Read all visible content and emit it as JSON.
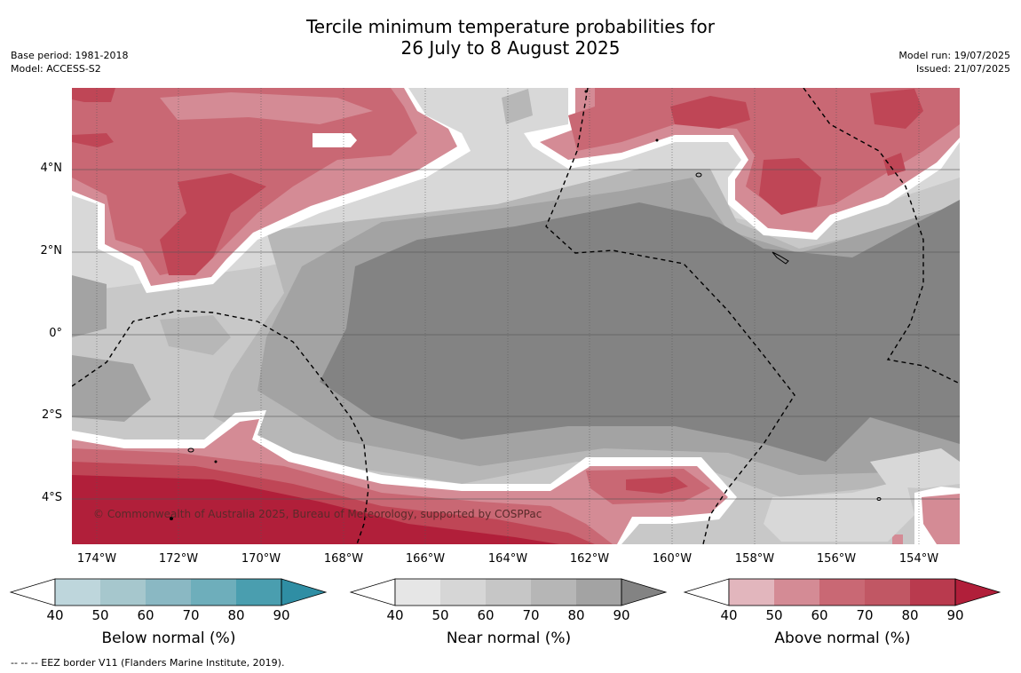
{
  "title": {
    "line1": "Tercile minimum temperature probabilities for",
    "line2": "26 July to 8 August 2025"
  },
  "meta_left": {
    "base_period": "Base period: 1981-2018",
    "model": "Model: ACCESS-S2"
  },
  "meta_right": {
    "model_run": "Model run: 19/07/2025",
    "issued": "Issued: 21/07/2025"
  },
  "map": {
    "lat_labels": [
      "4°N",
      "2°N",
      "0°",
      "2°S",
      "4°S"
    ],
    "lon_labels": [
      "174°W",
      "172°W",
      "170°W",
      "168°W",
      "166°W",
      "164°W",
      "162°W",
      "160°W",
      "158°W",
      "156°W",
      "154°W"
    ],
    "copyright": "© Commonwealth of Australia 2025, Bureau of Meteorology, supported by COSPPac",
    "colors": {
      "near_90": "#838383",
      "near_80": "#a3a3a3",
      "near_70": "#b7b7b7",
      "near_60": "#c8c8c8",
      "near_50": "#d8d8d8",
      "above_50": "#e2b6bd",
      "above_60": "#d48b95",
      "above_70": "#c96874",
      "above_80": "#bf4656",
      "above_90": "#b11f3a"
    }
  },
  "colorbars": [
    {
      "label": "Below normal (%)",
      "ticks": [
        "40",
        "50",
        "60",
        "70",
        "80",
        "90"
      ],
      "colors": [
        "#bed6dc",
        "#a6c7cd",
        "#8ab8c3",
        "#6eaebb",
        "#4a9eaf",
        "#2f8ea4"
      ]
    },
    {
      "label": "Near normal (%)",
      "ticks": [
        "40",
        "50",
        "60",
        "70",
        "80",
        "90"
      ],
      "colors": [
        "#e6e6e6",
        "#d6d6d6",
        "#c6c6c6",
        "#b6b6b6",
        "#a3a3a3",
        "#838383"
      ]
    },
    {
      "label": "Above normal (%)",
      "ticks": [
        "40",
        "50",
        "60",
        "70",
        "80",
        "90"
      ],
      "colors": [
        "#e2b6bd",
        "#d48b95",
        "#c96874",
        "#c15764",
        "#b93a4e",
        "#b11f3a"
      ]
    }
  ],
  "footnote": "--  --  -- EEZ border V11 (Flanders Marine Institute, 2019)."
}
